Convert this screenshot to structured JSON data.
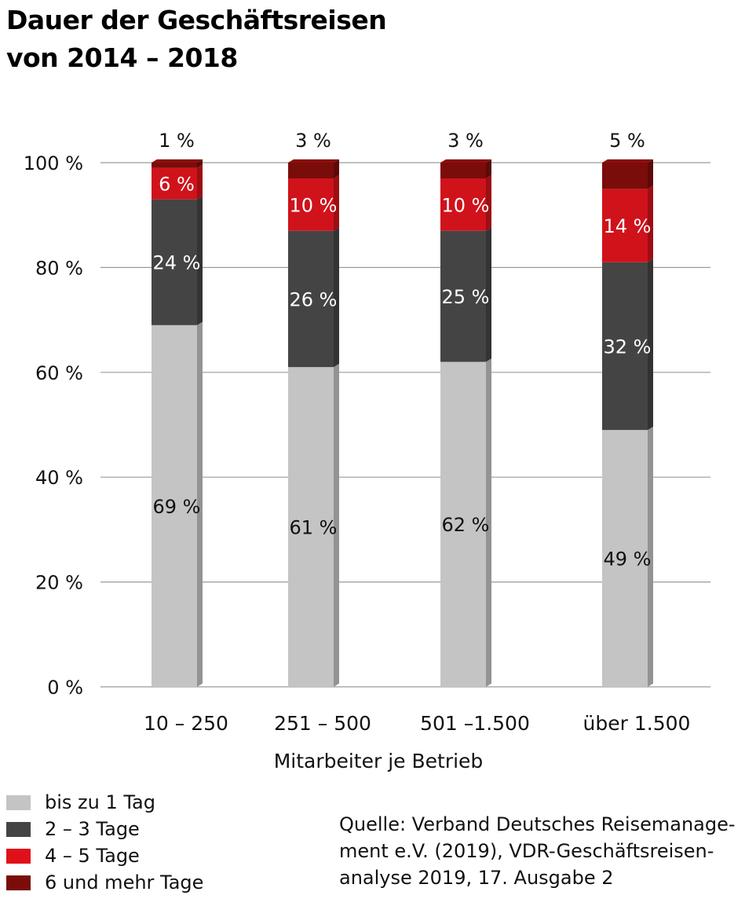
{
  "title_lines": [
    "Dauer der Geschäftsreisen",
    "von 2014 – 2018"
  ],
  "source_lines": [
    "Quelle: Verband Deutsches Reisemanage-",
    "ment e.V. (2019), VDR-Geschäftsreisen-",
    "analyse 2019, 17. Ausgabe 2"
  ],
  "chart_data": {
    "type": "bar",
    "stacked": true,
    "title": "Dauer der Geschäftsreisen von 2014 – 2018",
    "xlabel": "Mitarbeiter je Betrieb",
    "ylabel": "",
    "ylim": [
      0,
      100
    ],
    "yticks": [
      "0 %",
      "20 %",
      "40 %",
      "60 %",
      "80 %",
      "100 %"
    ],
    "grid": true,
    "legend_position": "bottom-left",
    "categories": [
      "10 – 250",
      "251 – 500",
      "501 –1.500",
      "über 1.500"
    ],
    "series": [
      {
        "name": "bis zu 1 Tag",
        "color": "#c4c4c4",
        "values": [
          69,
          61,
          62,
          49
        ],
        "labels": [
          "69 %",
          "61 %",
          "62 %",
          "49 %"
        ],
        "label_color": "#111111"
      },
      {
        "name": "2 – 3 Tage",
        "color": "#444444",
        "values": [
          24,
          26,
          25,
          32
        ],
        "labels": [
          "24 %",
          "26 %",
          "25 %",
          "32 %"
        ],
        "label_color": "#ffffff"
      },
      {
        "name": "4 – 5 Tage",
        "color": "#d0121b",
        "values": [
          6,
          10,
          10,
          14
        ],
        "labels": [
          "6 %",
          "10 %",
          "10 %",
          "14 %"
        ],
        "label_color": "#ffffff"
      },
      {
        "name": "6 und mehr Tage",
        "color": "#7a0d0a",
        "values": [
          1,
          3,
          3,
          5
        ],
        "labels": [
          "1 %",
          "3 %",
          "3 %",
          "5 %"
        ],
        "label_color": "#111111"
      }
    ]
  }
}
